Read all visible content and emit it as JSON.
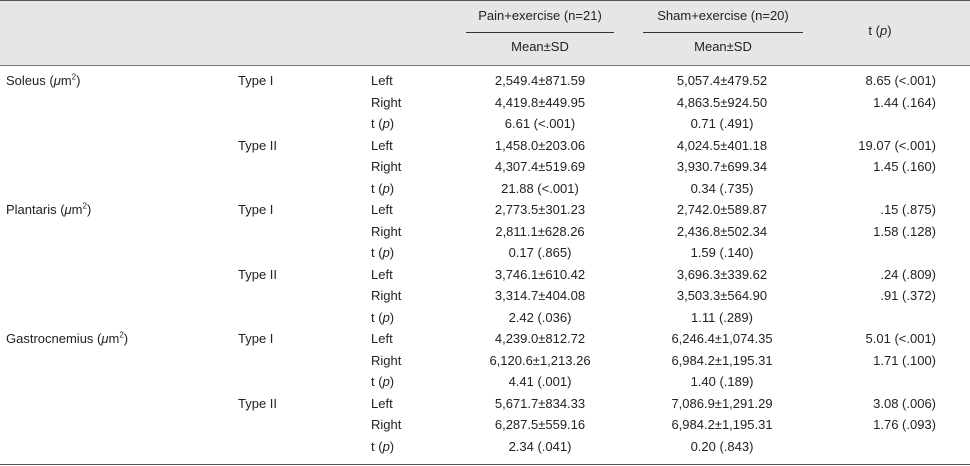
{
  "header": {
    "group1": "Pain+exercise (n=21)",
    "group2": "Sham+exercise (n=20)",
    "sub1": "Mean±SD",
    "sub2": "Mean±SD",
    "t_label": "t (p)"
  },
  "rows": [
    {
      "muscle": "Soleus (μm²)",
      "type": "Type I",
      "side": "Left",
      "pain": "2,549.4±871.59",
      "sham": "5,057.4±479.52",
      "t": "8.65 (<.001)"
    },
    {
      "muscle": "",
      "type": "",
      "side": "Right",
      "pain": "4,419.8±449.95",
      "sham": "4,863.5±924.50",
      "t": "1.44 (.164)"
    },
    {
      "muscle": "",
      "type": "",
      "side": "t (p)",
      "pain": "6.61 (<.001)",
      "sham": "0.71 (.491)",
      "t": ""
    },
    {
      "muscle": "",
      "type": "Type II",
      "side": "Left",
      "pain": "1,458.0±203.06",
      "sham": "4,024.5±401.18",
      "t": "19.07 (<.001)"
    },
    {
      "muscle": "",
      "type": "",
      "side": "Right",
      "pain": "4,307.4±519.69",
      "sham": "3,930.7±699.34",
      "t": "1.45 (.160)"
    },
    {
      "muscle": "",
      "type": "",
      "side": "t (p)",
      "pain": "21.88 (<.001)",
      "sham": "0.34 (.735)",
      "t": ""
    },
    {
      "muscle": "Plantaris (μm²)",
      "type": "Type I",
      "side": "Left",
      "pain": "2,773.5±301.23",
      "sham": "2,742.0±589.87",
      "t": ".15 (.875)"
    },
    {
      "muscle": "",
      "type": "",
      "side": "Right",
      "pain": "2,811.1±628.26",
      "sham": "2,436.8±502.34",
      "t": "1.58 (.128)"
    },
    {
      "muscle": "",
      "type": "",
      "side": "t (p)",
      "pain": "0.17 (.865)",
      "sham": "1.59 (.140)",
      "t": ""
    },
    {
      "muscle": "",
      "type": "Type II",
      "side": "Left",
      "pain": "3,746.1±610.42",
      "sham": "3,696.3±339.62",
      "t": ".24 (.809)"
    },
    {
      "muscle": "",
      "type": "",
      "side": "Right",
      "pain": "3,314.7±404.08",
      "sham": "3,503.3±564.90",
      "t": ".91 (.372)"
    },
    {
      "muscle": "",
      "type": "",
      "side": "t (p)",
      "pain": "2.42 (.036)",
      "sham": "1.11 (.289)",
      "t": ""
    },
    {
      "muscle": "Gastrocnemius (μm²)",
      "type": "Type I",
      "side": "Left",
      "pain": "4,239.0±812.72",
      "sham": "6,246.4±1,074.35",
      "t": "5.01 (<.001)"
    },
    {
      "muscle": "",
      "type": "",
      "side": "Right",
      "pain": "6,120.6±1,213.26",
      "sham": "6,984.2±1,195.31",
      "t": "1.71 (.100)"
    },
    {
      "muscle": "",
      "type": "",
      "side": "t (p)",
      "pain": "4.41 (.001)",
      "sham": "1.40 (.189)",
      "t": ""
    },
    {
      "muscle": "",
      "type": "Type II",
      "side": "Left",
      "pain": "5,671.7±834.33",
      "sham": "7,086.9±1,291.29",
      "t": "3.08 (.006)"
    },
    {
      "muscle": "",
      "type": "",
      "side": "Right",
      "pain": "6,287.5±559.16",
      "sham": "6,984.2±1,195.31",
      "t": "1.76 (.093)"
    },
    {
      "muscle": "",
      "type": "",
      "side": "t (p)",
      "pain": "2.34 (.041)",
      "sham": "0.20 (.843)",
      "t": ""
    }
  ]
}
